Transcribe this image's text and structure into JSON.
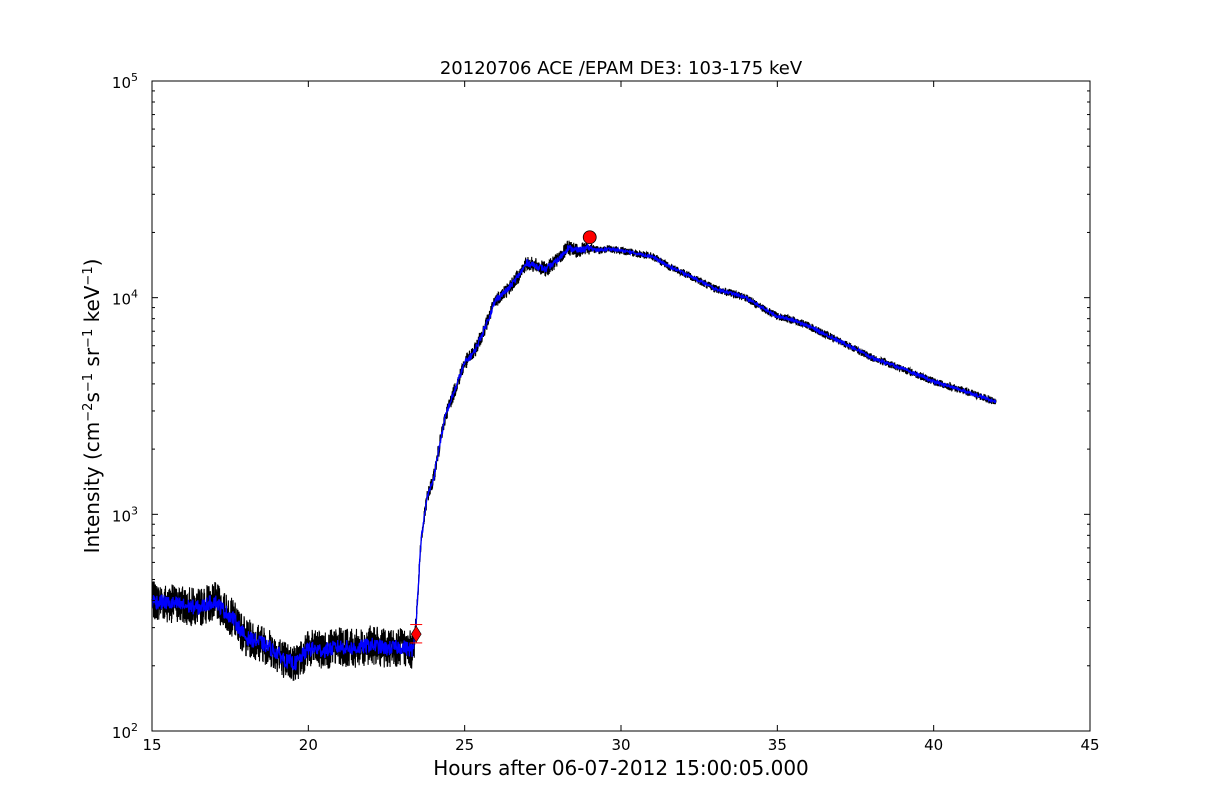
{
  "chart_data": {
    "type": "line",
    "title": "20120706 ACE /EPAM DE3: 103-175 keV",
    "xlabel": "Hours after 06-07-2012 15:00:05.000",
    "ylabel": {
      "base": "Intensity (cm",
      "sup1": "−2",
      "mid1": "s",
      "sup2": "−1",
      "mid2": " sr",
      "sup3": "−1",
      "mid3": " keV",
      "sup4": "−1",
      "end": ")"
    },
    "xlim": [
      15,
      45
    ],
    "ylim": [
      100,
      100000
    ],
    "yscale": "log",
    "x_ticks": [
      {
        "value": 15,
        "label": "15"
      },
      {
        "value": 20,
        "label": "20"
      },
      {
        "value": 25,
        "label": "25"
      },
      {
        "value": 30,
        "label": "30"
      },
      {
        "value": 35,
        "label": "35"
      },
      {
        "value": 40,
        "label": "40"
      },
      {
        "value": 45,
        "label": "45"
      }
    ],
    "y_ticks": [
      {
        "value": 100,
        "base": "10",
        "exp": "2"
      },
      {
        "value": 1000,
        "base": "10",
        "exp": "3"
      },
      {
        "value": 10000,
        "base": "10",
        "exp": "4"
      },
      {
        "value": 100000,
        "base": "10",
        "exp": "5"
      }
    ],
    "grid": false,
    "series": [
      {
        "color": "#000000",
        "style": "raw noisy data",
        "x": [
          15.0,
          15.5,
          16.0,
          16.5,
          17.0,
          17.3,
          17.6,
          18.0,
          18.5,
          19.0,
          19.3,
          19.6,
          20.0,
          20.5,
          21.0,
          21.5,
          22.0,
          22.5,
          23.0,
          23.35,
          23.45,
          23.6,
          23.8,
          24.0,
          24.2,
          24.4,
          24.7,
          25.0,
          25.3,
          25.6,
          26.0,
          26.4,
          26.7,
          27.0,
          27.3,
          27.6,
          28.0,
          28.3,
          28.6,
          29.0,
          29.3,
          29.6,
          30.0,
          30.5,
          31.0,
          31.5,
          32.0,
          32.5,
          33.0,
          33.5,
          34.0,
          34.5,
          35.0,
          35.5,
          36.0,
          36.5,
          37.0,
          37.5,
          38.0,
          38.5,
          39.0,
          39.5,
          40.0,
          40.5,
          41.0,
          41.5,
          42.0
        ],
        "y": [
          400,
          390,
          380,
          370,
          400,
          360,
          330,
          270,
          255,
          230,
          210,
          205,
          240,
          235,
          245,
          240,
          250,
          240,
          245,
          235,
          320,
          750,
          1200,
          1450,
          2100,
          2900,
          3800,
          5000,
          5600,
          7000,
          9800,
          11000,
          12500,
          14500,
          14000,
          13500,
          15000,
          17000,
          16500,
          17000,
          16500,
          16800,
          16500,
          16000,
          15500,
          14000,
          13000,
          12000,
          11000,
          10500,
          10000,
          9000,
          8200,
          7900,
          7400,
          6800,
          6300,
          5800,
          5300,
          5000,
          4700,
          4400,
          4100,
          3900,
          3700,
          3500,
          3300
        ]
      },
      {
        "color": "#0000ff",
        "style": "smoothed",
        "x": [
          15.0,
          15.5,
          16.0,
          16.5,
          17.0,
          17.3,
          17.6,
          18.0,
          18.5,
          19.0,
          19.3,
          19.6,
          20.0,
          20.5,
          21.0,
          21.5,
          22.0,
          22.5,
          23.0,
          23.35,
          23.45,
          23.6,
          23.8,
          24.0,
          24.2,
          24.4,
          24.7,
          25.0,
          25.3,
          25.6,
          26.0,
          26.4,
          26.7,
          27.0,
          27.3,
          27.6,
          28.0,
          28.3,
          28.6,
          29.0,
          29.3,
          29.6,
          30.0,
          30.5,
          31.0,
          31.5,
          32.0,
          32.5,
          33.0,
          33.5,
          34.0,
          34.5,
          35.0,
          35.5,
          36.0,
          36.5,
          37.0,
          37.5,
          38.0,
          38.5,
          39.0,
          39.5,
          40.0,
          40.5,
          41.0,
          41.5,
          42.0
        ],
        "y": [
          400,
          390,
          380,
          370,
          400,
          360,
          330,
          270,
          255,
          230,
          210,
          205,
          240,
          235,
          245,
          240,
          250,
          240,
          245,
          235,
          320,
          750,
          1200,
          1450,
          2100,
          2900,
          3800,
          5000,
          5600,
          7000,
          9800,
          11000,
          12500,
          14500,
          14000,
          13500,
          15000,
          17000,
          16500,
          17000,
          16500,
          16800,
          16500,
          16000,
          15500,
          14000,
          13000,
          12000,
          11000,
          10500,
          10000,
          9000,
          8200,
          7900,
          7400,
          6800,
          6300,
          5800,
          5300,
          5000,
          4700,
          4400,
          4100,
          3900,
          3700,
          3500,
          3300
        ]
      }
    ],
    "markers": [
      {
        "shape": "diamond",
        "color": "#ff0000",
        "x": 23.45,
        "y": 280,
        "y_err": [
          255,
          310
        ]
      },
      {
        "shape": "circle",
        "color": "#ff0000",
        "x": 29.0,
        "y": 19000
      }
    ]
  }
}
